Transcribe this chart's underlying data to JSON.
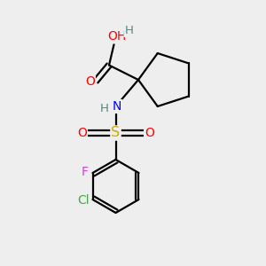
{
  "background_color": "#eeeeee",
  "atom_colors": {
    "C": "#000000",
    "H": "#4a8a8a",
    "O": "#ff0000",
    "N": "#0000ff",
    "S": "#ccaa00",
    "F": "#cc44cc",
    "Cl": "#44aa44"
  },
  "figsize": [
    3.0,
    3.0
  ],
  "dpi": 100,
  "lw": 1.6,
  "fontsize": 9.5
}
